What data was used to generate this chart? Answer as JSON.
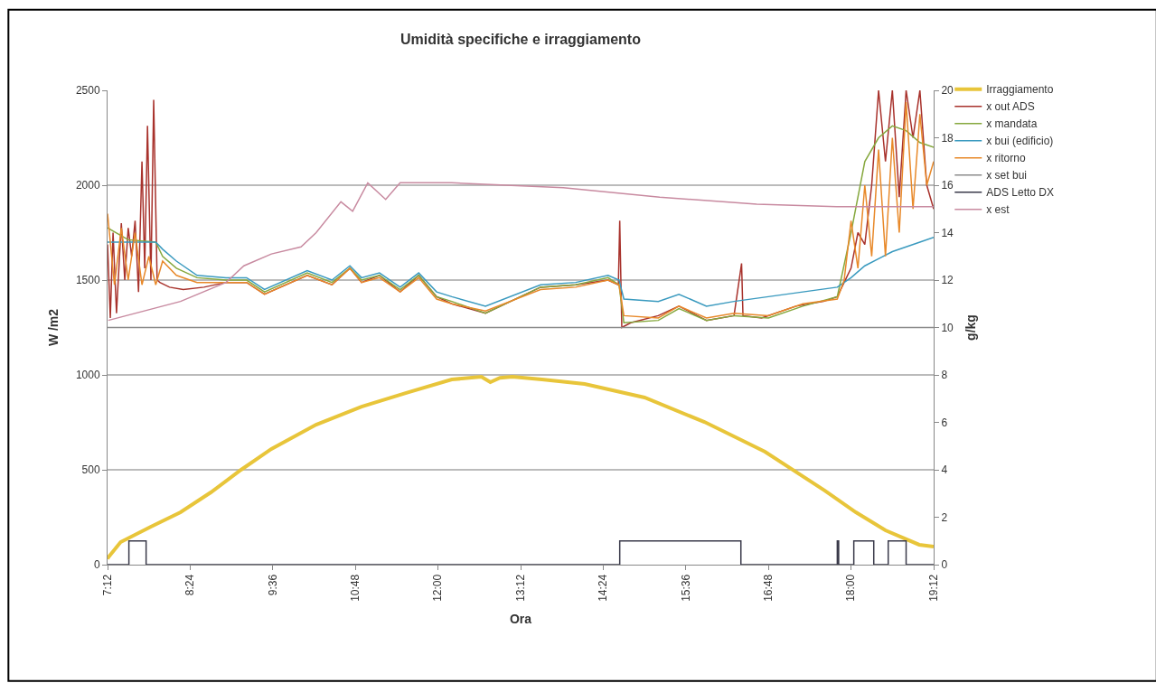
{
  "chart_data": {
    "type": "line",
    "title": "Umidità specifiche e irraggiamento",
    "xlabel": "Ora",
    "ylabel": "W /m2",
    "y2label": "g/kg",
    "xlim": [
      7.2,
      19.2
    ],
    "xticks": [
      {
        "value": 7.2,
        "label": "7:12"
      },
      {
        "value": 8.4,
        "label": "8:24"
      },
      {
        "value": 9.6,
        "label": "9:36"
      },
      {
        "value": 10.8,
        "label": "10:48"
      },
      {
        "value": 12,
        "label": "12:00"
      },
      {
        "value": 13.2,
        "label": "13:12"
      },
      {
        "value": 14.4,
        "label": "14:24"
      },
      {
        "value": 15.6,
        "label": "15:36"
      },
      {
        "value": 16.8,
        "label": "16:48"
      },
      {
        "value": 18,
        "label": "18:00"
      },
      {
        "value": 19.2,
        "label": "19:12"
      }
    ],
    "ylim": [
      0,
      2500
    ],
    "yticks": [
      0,
      500,
      1000,
      1500,
      2000,
      2500
    ],
    "y2lim": [
      0,
      20
    ],
    "y2ticks": [
      0,
      2,
      4,
      6,
      8,
      10,
      12,
      14,
      16,
      18,
      20
    ],
    "grid": "y",
    "legend": "right",
    "series": [
      {
        "name": "Irraggiamento",
        "color": "#e8c53a",
        "x": [
          7.2,
          7.21,
          7.39,
          7.83,
          8.26,
          8.7,
          9.14,
          9.58,
          10.23,
          10.89,
          11.54,
          12.2,
          12.63,
          12.76,
          12.9,
          13.08,
          13.51,
          14.13,
          15.0,
          15.87,
          16.75,
          17.62,
          18.07,
          18.5,
          18.99,
          19.2
        ],
        "values": [
          30,
          38,
          119,
          200,
          276,
          381,
          500,
          610,
          738,
          833,
          905,
          976,
          990,
          962,
          985,
          990,
          976,
          952,
          881,
          752,
          595,
          390,
          276,
          181,
          105,
          95
        ]
      },
      {
        "name": "x out ADS",
        "color": "#a8322c",
        "axis": "y2",
        "x": [
          7.2,
          7.24,
          7.28,
          7.33,
          7.4,
          7.45,
          7.5,
          7.55,
          7.6,
          7.65,
          7.7,
          7.74,
          7.78,
          7.83,
          7.87,
          7.92,
          7.96,
          8.1,
          8.3,
          8.6,
          8.92,
          9.22,
          9.48,
          10.1,
          10.46,
          10.72,
          10.89,
          11.15,
          11.45,
          11.72,
          11.98,
          12.2,
          12.69,
          13.49,
          14.0,
          14.47,
          14.62,
          14.64,
          14.67,
          14.8,
          15.2,
          15.5,
          15.9,
          16.3,
          16.41,
          16.43,
          16.7,
          17.2,
          17.6,
          17.8,
          18.0,
          18.1,
          18.2,
          18.3,
          18.4,
          18.5,
          18.6,
          18.7,
          18.8,
          18.9,
          19.0,
          19.1,
          19.2
        ],
        "values": [
          13.5,
          10.4,
          14.0,
          10.6,
          14.4,
          12.0,
          14.2,
          13.0,
          14.5,
          11.5,
          17.0,
          12.5,
          18.5,
          12.0,
          19.6,
          12.0,
          11.9,
          11.7,
          11.6,
          11.7,
          11.9,
          11.9,
          11.4,
          12.2,
          11.8,
          12.5,
          11.9,
          12.2,
          11.5,
          12.2,
          11.3,
          11.0,
          10.6,
          11.7,
          11.8,
          12.0,
          11.8,
          14.5,
          10.0,
          10.2,
          10.5,
          10.9,
          10.3,
          10.5,
          12.7,
          10.5,
          10.4,
          10.9,
          11.1,
          11.3,
          12.5,
          14.0,
          13.5,
          16.0,
          20.0,
          17.0,
          20.0,
          15.5,
          20.0,
          18.0,
          20.0,
          16.0,
          15.0
        ]
      },
      {
        "name": "x mandata",
        "color": "#86a83e",
        "axis": "y2",
        "x": [
          7.2,
          7.5,
          7.9,
          8.0,
          8.2,
          8.5,
          8.92,
          9.22,
          9.48,
          10.1,
          10.46,
          10.72,
          10.89,
          11.15,
          11.45,
          11.72,
          11.98,
          12.2,
          12.69,
          13.49,
          14.0,
          14.47,
          14.63,
          14.7,
          15.2,
          15.5,
          15.9,
          16.3,
          16.8,
          17.3,
          17.8,
          18.0,
          18.2,
          18.4,
          18.6,
          18.8,
          19.0,
          19.2
        ],
        "values": [
          14.2,
          13.7,
          13.6,
          13.0,
          12.5,
          12.1,
          12.0,
          12.0,
          11.5,
          12.3,
          11.9,
          12.5,
          12.0,
          12.2,
          11.6,
          12.2,
          11.3,
          11.1,
          10.6,
          11.7,
          11.8,
          12.1,
          11.8,
          10.2,
          10.3,
          10.8,
          10.3,
          10.5,
          10.4,
          10.9,
          11.3,
          14.0,
          17.0,
          18.0,
          18.5,
          18.3,
          17.8,
          17.6
        ]
      },
      {
        "name": "x bui (edificio)",
        "color": "#3a9abf",
        "axis": "y2",
        "x": [
          7.2,
          7.5,
          7.9,
          8.0,
          8.2,
          8.5,
          8.92,
          9.22,
          9.48,
          10.1,
          10.46,
          10.72,
          10.89,
          11.15,
          11.45,
          11.72,
          11.98,
          12.2,
          12.69,
          13.49,
          14.0,
          14.47,
          14.63,
          14.7,
          15.2,
          15.5,
          15.9,
          16.3,
          16.8,
          17.3,
          17.8,
          18.0,
          18.2,
          18.4,
          18.6,
          18.8,
          19.0,
          19.2
        ],
        "values": [
          13.6,
          13.6,
          13.6,
          13.3,
          12.8,
          12.2,
          12.1,
          12.1,
          11.6,
          12.4,
          12.0,
          12.6,
          12.1,
          12.3,
          11.7,
          12.3,
          11.5,
          11.3,
          10.9,
          11.8,
          11.9,
          12.2,
          12.0,
          11.2,
          11.1,
          11.4,
          10.9,
          11.1,
          11.3,
          11.5,
          11.7,
          12.1,
          12.6,
          12.9,
          13.2,
          13.4,
          13.6,
          13.8
        ]
      },
      {
        "name": "x ritorno",
        "color": "#e8892a",
        "axis": "y2",
        "x": [
          7.2,
          7.3,
          7.4,
          7.5,
          7.6,
          7.7,
          7.8,
          7.9,
          8.0,
          8.2,
          8.5,
          8.92,
          9.22,
          9.48,
          10.1,
          10.46,
          10.72,
          10.89,
          11.15,
          11.45,
          11.72,
          11.98,
          12.2,
          12.69,
          13.49,
          14.0,
          14.47,
          14.63,
          14.7,
          15.2,
          15.5,
          15.9,
          16.3,
          16.8,
          17.3,
          17.8,
          17.9,
          18.0,
          18.1,
          18.2,
          18.3,
          18.4,
          18.5,
          18.6,
          18.7,
          18.8,
          18.9,
          19.0,
          19.1,
          19.2
        ],
        "values": [
          14.8,
          11.8,
          14.2,
          12.0,
          14.0,
          11.8,
          13.0,
          11.8,
          12.8,
          12.2,
          11.9,
          11.9,
          11.9,
          11.4,
          12.2,
          11.8,
          12.5,
          11.9,
          12.1,
          11.5,
          12.1,
          11.2,
          11.0,
          10.7,
          11.6,
          11.7,
          12.0,
          11.8,
          10.5,
          10.4,
          10.9,
          10.4,
          10.6,
          10.5,
          11.0,
          11.2,
          12.0,
          14.5,
          12.5,
          16.0,
          13.0,
          17.5,
          13.0,
          18.0,
          14.0,
          19.5,
          15.0,
          19.0,
          16.0,
          17.0
        ]
      },
      {
        "name": "x set bui",
        "color": "#8c8c8c",
        "axis": "y2",
        "x": [
          7.2,
          19.2
        ],
        "values": [
          10,
          10
        ]
      },
      {
        "name": "ADS Letto DX",
        "color": "#3a3a4a",
        "axis": "y2",
        "type": "step",
        "x": [
          7.2,
          7.51,
          7.76,
          14.64,
          16.4,
          17.8,
          17.82,
          18.04,
          18.33,
          18.54,
          18.8,
          19.2
        ],
        "values": [
          0,
          1,
          0,
          1,
          0,
          1,
          0,
          1,
          0,
          1,
          0,
          0
        ]
      },
      {
        "name": "x est",
        "color": "#c88aa0",
        "axis": "y2",
        "x": [
          7.21,
          8.26,
          8.92,
          9.18,
          9.58,
          10.01,
          10.23,
          10.59,
          10.76,
          10.98,
          11.24,
          11.45,
          12.2,
          13.82,
          15.22,
          16.63,
          17.79,
          18.92,
          19.2
        ],
        "values": [
          10.3,
          11.1,
          11.9,
          12.6,
          13.1,
          13.4,
          14.0,
          15.3,
          14.9,
          16.1,
          15.4,
          16.1,
          16.1,
          15.9,
          15.5,
          15.2,
          15.1,
          15.1,
          15.1
        ]
      }
    ]
  }
}
